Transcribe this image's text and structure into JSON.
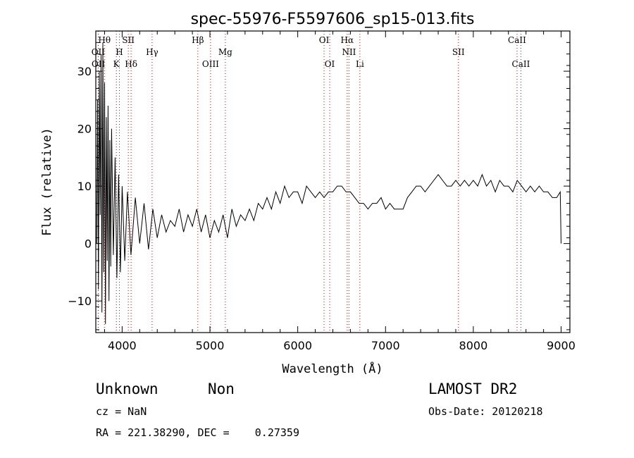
{
  "chart_data": {
    "type": "line",
    "title": "spec-55976-F5597606_sp15-013.fits",
    "xlabel": "Wavelength (Å)",
    "ylabel": "Flux (relative)",
    "xlim": [
      3700,
      9100
    ],
    "ylim": [
      -15.5,
      37
    ],
    "xticks": [
      4000,
      5000,
      6000,
      7000,
      8000,
      9000
    ],
    "yticks": [
      -10,
      0,
      10,
      20,
      30
    ],
    "grid": false,
    "line_color": "#000000",
    "marker_color": "#cc0000",
    "spectral_lines": [
      {
        "label": "OII",
        "wavelength": 3727,
        "row": 2
      },
      {
        "label": "OII",
        "wavelength": 3729,
        "row": 4
      },
      {
        "label": "Hθ",
        "wavelength": 3798,
        "row": 0
      },
      {
        "label": "SII",
        "wavelength": 4070,
        "row": 0
      },
      {
        "label": "H",
        "wavelength": 3969,
        "row": 2
      },
      {
        "label": "K",
        "wavelength": 3934,
        "row": 4
      },
      {
        "label": "Hδ",
        "wavelength": 4102,
        "row": 4
      },
      {
        "label": "Hγ",
        "wavelength": 4341,
        "row": 2
      },
      {
        "label": "Hβ",
        "wavelength": 4862,
        "row": 0
      },
      {
        "label": "Mg",
        "wavelength": 5175,
        "row": 2
      },
      {
        "label": "OIII",
        "wavelength": 5007,
        "row": 4
      },
      {
        "label": "OI",
        "wavelength": 6300,
        "row": 0
      },
      {
        "label": "OI",
        "wavelength": 6364,
        "row": 4
      },
      {
        "label": "Hα",
        "wavelength": 6563,
        "row": 0
      },
      {
        "label": "NII",
        "wavelength": 6584,
        "row": 2
      },
      {
        "label": "Li",
        "wavelength": 6708,
        "row": 4
      },
      {
        "label": "SII",
        "wavelength": 7830,
        "row": 2
      },
      {
        "label": "CaII",
        "wavelength": 8498,
        "row": 0
      },
      {
        "label": "CaII",
        "wavelength": 8542,
        "row": 4
      }
    ],
    "series": [
      {
        "x": [
          3710,
          3720,
          3730,
          3740,
          3750,
          3760,
          3770,
          3780,
          3790,
          3800,
          3810,
          3820,
          3830,
          3840,
          3850,
          3860,
          3870,
          3880,
          3900,
          3920,
          3940,
          3960,
          3980,
          4000,
          4030,
          4060,
          4100,
          4150,
          4200,
          4250,
          4300,
          4350,
          4400,
          4450,
          4500,
          4550,
          4600,
          4650,
          4700,
          4750,
          4800,
          4850,
          4900,
          4950,
          5000,
          5050,
          5100,
          5150,
          5200,
          5250,
          5300,
          5350,
          5400,
          5450,
          5500,
          5550,
          5600,
          5650,
          5700,
          5750,
          5800,
          5850,
          5900,
          5950,
          6000,
          6050,
          6100,
          6150,
          6200,
          6250,
          6300,
          6350,
          6400,
          6450,
          6500,
          6550,
          6600,
          6650,
          6700,
          6750,
          6800,
          6850,
          6900,
          6950,
          7000,
          7050,
          7100,
          7150,
          7200,
          7250,
          7300,
          7350,
          7400,
          7450,
          7500,
          7550,
          7600,
          7650,
          7700,
          7750,
          7800,
          7850,
          7900,
          7950,
          8000,
          8050,
          8100,
          8150,
          8200,
          8250,
          8300,
          8350,
          8400,
          8450,
          8500,
          8550,
          8600,
          8650,
          8700,
          8750,
          8800,
          8850,
          8900,
          8950,
          8990,
          9000
        ],
        "y": [
          0,
          25,
          -8,
          30,
          5,
          33,
          -12,
          35,
          -5,
          28,
          -14,
          22,
          -3,
          24,
          -10,
          18,
          -4,
          20,
          -2,
          15,
          -6,
          12,
          -5,
          10,
          -3,
          9,
          -2,
          8,
          0,
          7,
          -1,
          6,
          1,
          5,
          2,
          4,
          3,
          6,
          2,
          5,
          3,
          6,
          2,
          5,
          1,
          4,
          2,
          5,
          1,
          6,
          3,
          5,
          4,
          6,
          4,
          7,
          6,
          8,
          6,
          9,
          7,
          10,
          8,
          9,
          9,
          7,
          10,
          9,
          8,
          9,
          8,
          9,
          9,
          10,
          10,
          9,
          9,
          8,
          7,
          7,
          6,
          7,
          7,
          8,
          6,
          7,
          6,
          6,
          6,
          8,
          9,
          10,
          10,
          9,
          10,
          11,
          12,
          11,
          10,
          10,
          11,
          10,
          11,
          10,
          11,
          10,
          12,
          10,
          11,
          9,
          11,
          10,
          10,
          9,
          11,
          10,
          9,
          10,
          9,
          10,
          9,
          9,
          8,
          8,
          9,
          0
        ]
      }
    ]
  },
  "info": {
    "class": "Unknown",
    "subclass": "Non",
    "survey": "LAMOST DR2",
    "cz": "cz = NaN",
    "obsdate": "Obs-Date: 20120218",
    "coords": "RA = 221.38290, DEC =    0.27359"
  }
}
